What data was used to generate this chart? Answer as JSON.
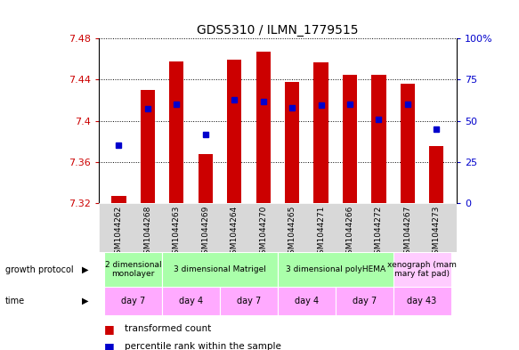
{
  "title": "GDS5310 / ILMN_1779515",
  "samples": [
    "GSM1044262",
    "GSM1044268",
    "GSM1044263",
    "GSM1044269",
    "GSM1044264",
    "GSM1044270",
    "GSM1044265",
    "GSM1044271",
    "GSM1044266",
    "GSM1044272",
    "GSM1044267",
    "GSM1044273"
  ],
  "bar_tops": [
    7.327,
    7.43,
    7.458,
    7.368,
    7.459,
    7.467,
    7.438,
    7.457,
    7.445,
    7.445,
    7.436,
    7.375
  ],
  "bar_bottom": 7.32,
  "blue_dots": [
    7.376,
    7.412,
    7.416,
    7.387,
    7.42,
    7.419,
    7.413,
    7.415,
    7.416,
    7.401,
    7.416,
    7.392
  ],
  "ylim": [
    7.32,
    7.48
  ],
  "yticks": [
    7.32,
    7.36,
    7.4,
    7.44,
    7.48
  ],
  "y2ticks": [
    0,
    25,
    50,
    75,
    100
  ],
  "y2labels": [
    "0",
    "25",
    "50",
    "75",
    "100%"
  ],
  "bar_color": "#cc0000",
  "dot_color": "#0000cc",
  "bar_width": 0.5,
  "growth_protocol_groups": [
    {
      "label": "2 dimensional\nmonolayer",
      "start": 0,
      "end": 2,
      "color": "#ccffcc"
    },
    {
      "label": "3 dimensional Matrigel",
      "start": 2,
      "end": 6,
      "color": "#aaffaa"
    },
    {
      "label": "3 dimensional polyHEMA",
      "start": 6,
      "end": 10,
      "color": "#ccffcc"
    },
    {
      "label": "xenograph (mam\nmary fat pad)",
      "start": 10,
      "end": 12,
      "color": "#ffccff"
    }
  ],
  "time_groups": [
    {
      "label": "day 7",
      "start": 0,
      "end": 2
    },
    {
      "label": "day 4",
      "start": 2,
      "end": 4
    },
    {
      "label": "day 7",
      "start": 4,
      "end": 6
    },
    {
      "label": "day 4",
      "start": 6,
      "end": 8
    },
    {
      "label": "day 7",
      "start": 8,
      "end": 10
    },
    {
      "label": "day 43",
      "start": 10,
      "end": 12
    }
  ],
  "time_color": "#ffaaff",
  "green_color": "#aaffaa",
  "pink_color": "#ffccff",
  "gray_color": "#cccccc",
  "tick_color_left": "#cc0000",
  "tick_color_right": "#0000cc"
}
